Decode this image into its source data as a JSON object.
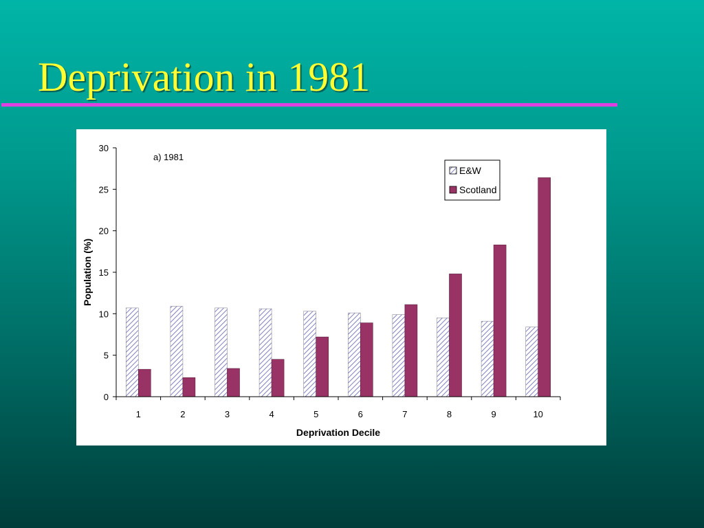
{
  "slide": {
    "title": "Deprivation in 1981"
  },
  "colors": {
    "background_top": "#00b5a7",
    "background_bottom": "#003d3a",
    "title": "#ffff33",
    "rule": "#e040e0",
    "ew_stripe": "#8080c0",
    "scotland": "#993366"
  },
  "chart_data": {
    "type": "bar",
    "annotation": "a) 1981",
    "categories": [
      "1",
      "2",
      "3",
      "4",
      "5",
      "6",
      "7",
      "8",
      "9",
      "10"
    ],
    "series": [
      {
        "name": "E&W",
        "values": [
          10.7,
          10.9,
          10.7,
          10.6,
          10.3,
          10.1,
          9.9,
          9.5,
          9.1,
          8.4
        ],
        "pattern": "diagonal-hatch",
        "color": "#8080c0"
      },
      {
        "name": "Scotland",
        "values": [
          3.3,
          2.3,
          3.4,
          4.5,
          7.2,
          8.9,
          11.1,
          14.8,
          18.3,
          26.4
        ],
        "pattern": "solid",
        "color": "#993366"
      }
    ],
    "xlabel": "Deprivation Decile",
    "ylabel": "Population (%)",
    "ylim": [
      0,
      30
    ],
    "yticks": [
      "0",
      "5",
      "10",
      "15",
      "20",
      "25",
      "30"
    ],
    "grid": false,
    "legend_position": "top-right"
  }
}
